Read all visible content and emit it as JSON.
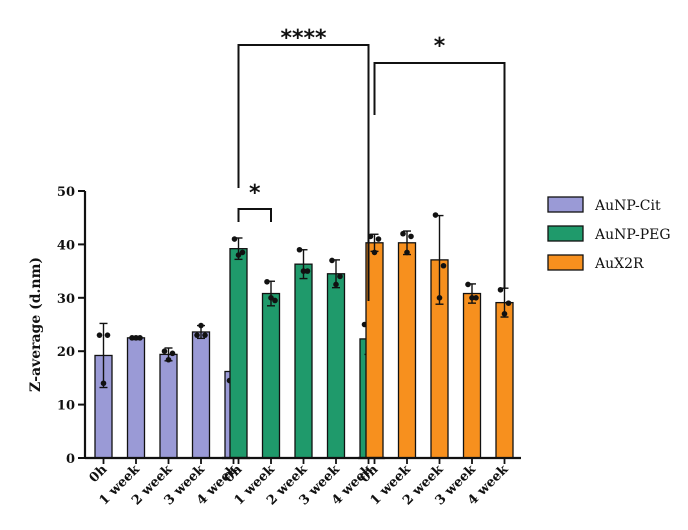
{
  "chart_data": {
    "type": "bar",
    "ylabel": "Z-average (d.nm)",
    "ylim": [
      0,
      50
    ],
    "yticks": [
      "0",
      "10",
      "20",
      "30",
      "40",
      "50"
    ],
    "grid": false,
    "legend_position": "right",
    "series": [
      {
        "name": "AuNP-Cit",
        "color": "#9a9ad6",
        "categories": [
          "0h",
          "1 week",
          "2 week",
          "3 week",
          "4 week"
        ],
        "values": [
          19.2,
          22.5,
          19.4,
          23.6,
          16.2
        ],
        "errors": [
          6.0,
          0.3,
          1.2,
          1.2,
          2.6
        ],
        "points": [
          [
            23.0,
            14.0,
            23.0
          ],
          [
            22.5,
            22.5,
            22.5
          ],
          [
            20.0,
            18.4,
            19.6
          ],
          [
            23.0,
            24.8,
            23.0
          ],
          [
            14.5,
            18.8,
            16.5
          ]
        ]
      },
      {
        "name": "AuNP-PEG",
        "color": "#1f9a6b",
        "categories": [
          "0h",
          "1 week",
          "2 week",
          "3 week",
          "4 week"
        ],
        "values": [
          39.2,
          30.8,
          36.3,
          34.5,
          22.3
        ],
        "errors": [
          2.0,
          2.3,
          2.7,
          2.6,
          2.9
        ],
        "points": [
          [
            41.0,
            38.0,
            38.5
          ],
          [
            33.0,
            30.0,
            29.5
          ],
          [
            39.0,
            35.0,
            35.0
          ],
          [
            37.0,
            32.5,
            34.0
          ],
          [
            25.0,
            20.0,
            22.0
          ]
        ]
      },
      {
        "name": "AuX2R",
        "color": "#f7901e",
        "categories": [
          "0h",
          "1 week",
          "2 week",
          "3 week",
          "4 week"
        ],
        "values": [
          40.3,
          40.3,
          37.1,
          30.8,
          29.1
        ],
        "errors": [
          1.6,
          2.2,
          8.3,
          1.8,
          2.7
        ],
        "points": [
          [
            41.5,
            38.5,
            41.0
          ],
          [
            42.0,
            38.5,
            41.5
          ],
          [
            45.5,
            30.0,
            36.0
          ],
          [
            32.5,
            30.0,
            30.0
          ],
          [
            31.5,
            27.0,
            29.0
          ]
        ]
      }
    ],
    "significance": [
      {
        "label": "*",
        "series": 1,
        "from": 0,
        "to": 1
      },
      {
        "label": "****",
        "series": 1,
        "from": 0,
        "to": 4
      },
      {
        "label": "*",
        "series": 2,
        "from": 0,
        "to": 4
      }
    ]
  }
}
